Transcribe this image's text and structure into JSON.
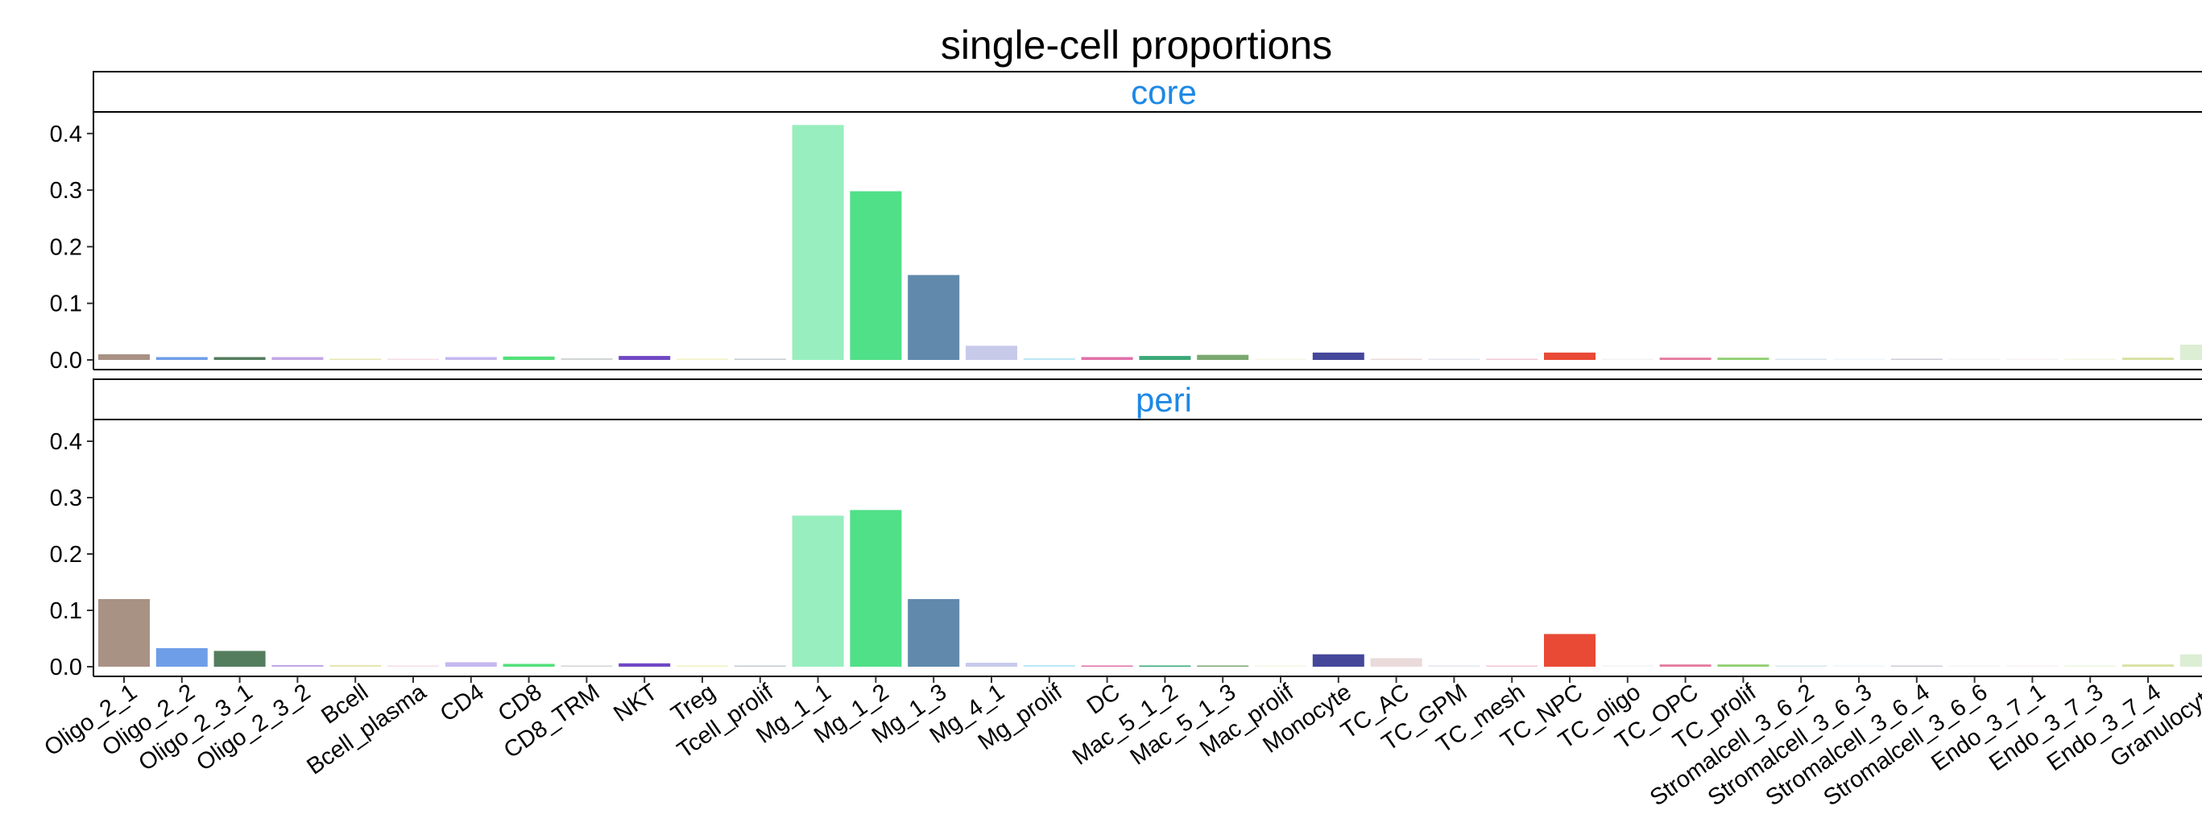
{
  "chart_data": {
    "type": "bar",
    "title": "single-cell proportions",
    "xlabel": "",
    "ylabel": "",
    "ylim": [
      0,
      0.43
    ],
    "yticks": [
      "0.0",
      "0.1",
      "0.2",
      "0.3",
      "0.4"
    ],
    "ytick_values": [
      0.0,
      0.1,
      0.2,
      0.3,
      0.4
    ],
    "grid": false,
    "legend": "none",
    "strip_text_color": "#1E88E5",
    "categories": [
      "Oligo_2_1",
      "Oligo_2_2",
      "Oligo_2_3_1",
      "Oligo_2_3_2",
      "Bcell",
      "Bcell_plasma",
      "CD4",
      "CD8",
      "CD8_TRM",
      "NKT",
      "Treg",
      "Tcell_prolif",
      "Mg_1_1",
      "Mg_1_2",
      "Mg_1_3",
      "Mg_4_1",
      "Mg_prolif",
      "DC",
      "Mac_5_1_2",
      "Mac_5_1_3",
      "Mac_prolif",
      "Monocyte",
      "TC_AC",
      "TC_GPM",
      "TC_mesh",
      "TC_NPC",
      "TC_oligo",
      "TC_OPC",
      "TC_prolif",
      "Stromalcell_3_6_2",
      "Stromalcell_3_6_3",
      "Stromalcell_3_6_4",
      "Stromalcell_3_6_6",
      "Endo_3_7_1",
      "Endo_3_7_3",
      "Endo_3_7_4",
      "Granulocyte"
    ],
    "colors": [
      "#A89284",
      "#6F9EE8",
      "#547D5E",
      "#C2A6E6",
      "#E8E6B0",
      "#F5DDE8",
      "#C5B8F0",
      "#52E07A",
      "#D2D6D2",
      "#7048C4",
      "#F2F0C2",
      "#C2CCD2",
      "#98EEBE",
      "#50E088",
      "#6089AC",
      "#C8CAEA",
      "#BCE8F4",
      "#E070A8",
      "#3AA878",
      "#7AA870",
      "#F6F6E4",
      "#44479A",
      "#EADADA",
      "#E4E4F0",
      "#F2C6D6",
      "#E84A36",
      "#F4F2F2",
      "#E47A9E",
      "#90D070",
      "#D6E6EE",
      "#EEF4F8",
      "#CCCCD8",
      "#F4F4F4",
      "#F8F0F0",
      "#EEF6E0",
      "#D8E0A0",
      "#DCEED4"
    ],
    "series": [
      {
        "name": "core",
        "values": [
          0.01,
          0.005,
          0.005,
          0.005,
          0.002,
          0.0005,
          0.005,
          0.006,
          0.003,
          0.007,
          0.002,
          0.002,
          0.415,
          0.298,
          0.15,
          0.025,
          0.003,
          0.005,
          0.007,
          0.009,
          0.002,
          0.013,
          0.002,
          0.002,
          0.002,
          0.013,
          0.0005,
          0.004,
          0.004,
          0.0005,
          0.0005,
          0.002,
          0.0005,
          0.0005,
          0.0005,
          0.004,
          0.027
        ]
      },
      {
        "name": "peri",
        "values": [
          0.12,
          0.033,
          0.028,
          0.003,
          0.003,
          0.0005,
          0.008,
          0.005,
          0.002,
          0.006,
          0.0005,
          0.0005,
          0.268,
          0.278,
          0.12,
          0.007,
          0.003,
          0.0005,
          0.002,
          0.0005,
          0.0005,
          0.022,
          0.015,
          0.002,
          0.0005,
          0.058,
          0.0005,
          0.004,
          0.004,
          0.0005,
          0.002,
          0.002,
          0.0005,
          0.0005,
          0.0005,
          0.004,
          0.022
        ]
      }
    ]
  }
}
